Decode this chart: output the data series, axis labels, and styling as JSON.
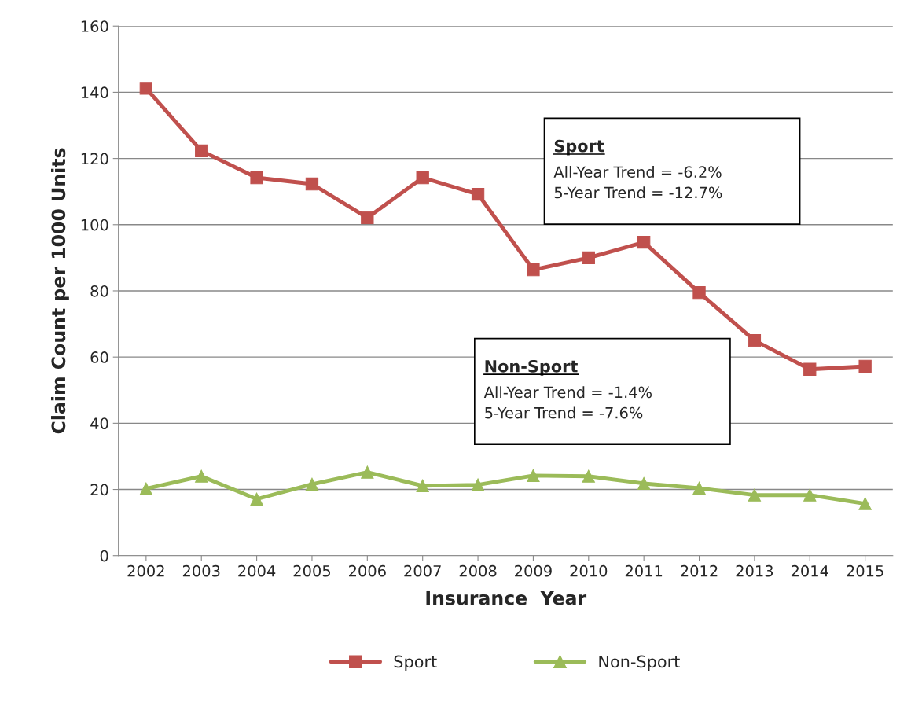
{
  "chart_data": {
    "type": "line",
    "xlabel": "Insurance  Year",
    "ylabel": "Claim Count per 1000 Units",
    "categories": [
      "2002",
      "2003",
      "2004",
      "2005",
      "2006",
      "2007",
      "2008",
      "2009",
      "2010",
      "2011",
      "2012",
      "2013",
      "2014",
      "2015"
    ],
    "series": [
      {
        "name": "Sport",
        "color": "#c0504d",
        "marker": "square",
        "values": [
          141.2,
          122.3,
          114.2,
          112.3,
          102.1,
          114.2,
          109.2,
          86.4,
          90.0,
          94.7,
          79.5,
          65.0,
          56.3,
          57.2
        ]
      },
      {
        "name": "Non-Sport",
        "color": "#9bbb59",
        "marker": "triangle",
        "values": [
          20.2,
          24.0,
          17.1,
          21.6,
          25.2,
          21.1,
          21.4,
          24.2,
          24.0,
          21.8,
          20.4,
          18.3,
          18.3,
          15.7
        ]
      }
    ],
    "ylim": [
      0,
      160
    ],
    "yticks": [
      0,
      20,
      40,
      60,
      80,
      100,
      120,
      140,
      160
    ],
    "grid": "y",
    "legend": "bottom",
    "line_style": "solid",
    "annotations": [
      "Sport",
      "All-Year Trend = -6.2%\n5-Year Trend = -12.7%",
      "Non-Sport",
      "All-Year Trend = -1.4%\n5-Year Trend = -7.6%"
    ]
  }
}
